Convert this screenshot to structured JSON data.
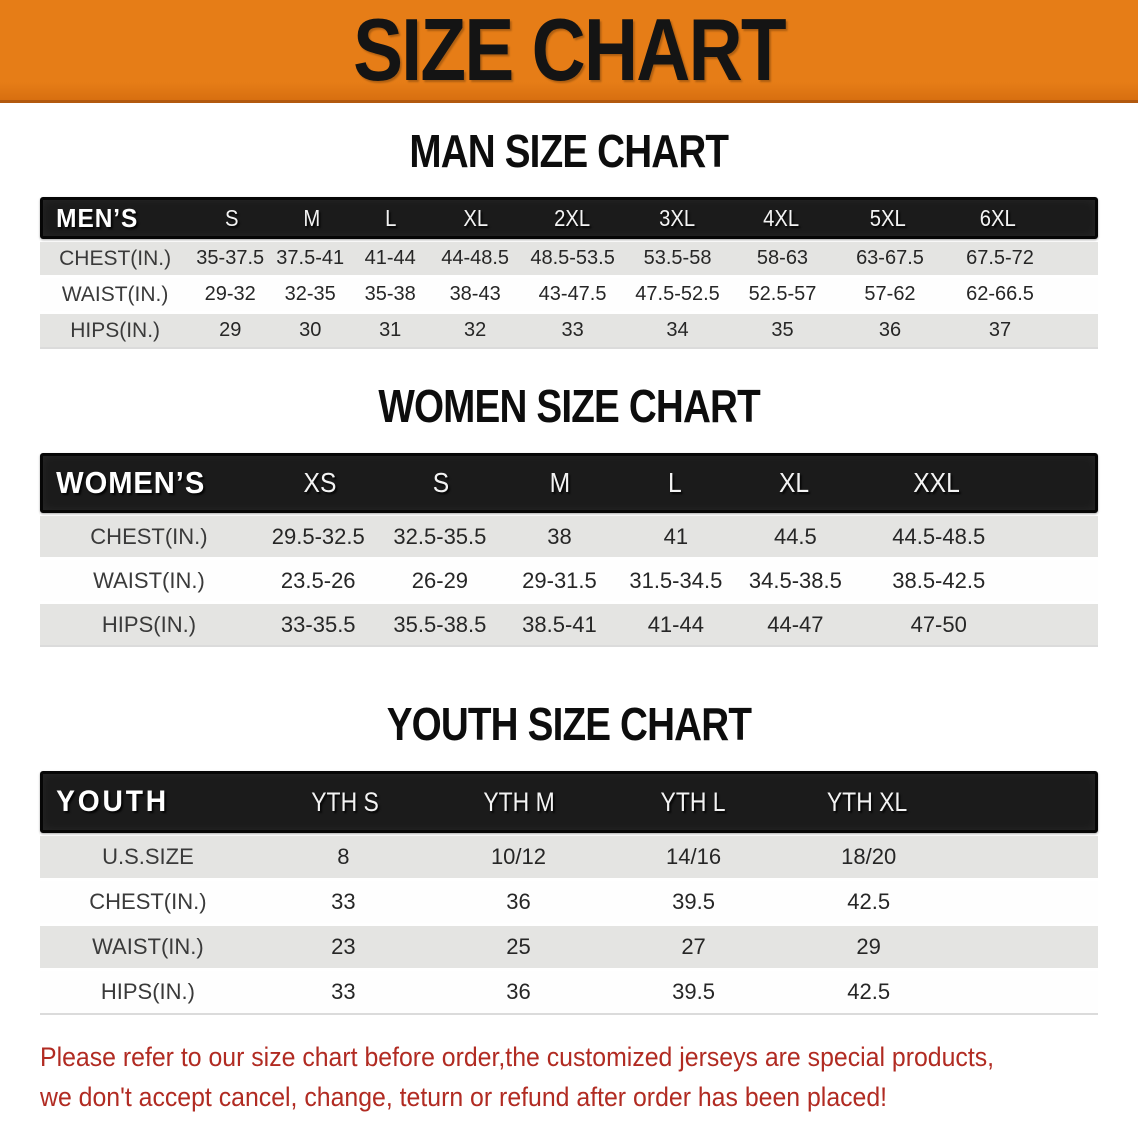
{
  "banner": {
    "title": "SIZE CHART"
  },
  "men": {
    "heading": "MAN SIZE CHART",
    "header": {
      "label": "MEN’S",
      "sizes": [
        "S",
        "M",
        "L",
        "XL",
        "2XL",
        "3XL",
        "4XL",
        "5XL",
        "6XL"
      ]
    },
    "rows": [
      {
        "label": "CHEST(IN.)",
        "cells": [
          "35-37.5",
          "37.5-41",
          "41-44",
          "44-48.5",
          "48.5-53.5",
          "53.5-58",
          "58-63",
          "63-67.5",
          "67.5-72"
        ]
      },
      {
        "label": "WAIST(IN.)",
        "cells": [
          "29-32",
          "32-35",
          "35-38",
          "38-43",
          "43-47.5",
          "47.5-52.5",
          "52.5-57",
          "57-62",
          "62-66.5"
        ]
      },
      {
        "label": "HIPS(IN.)",
        "cells": [
          "29",
          "30",
          "31",
          "32",
          "33",
          "34",
          "35",
          "36",
          "37"
        ]
      }
    ]
  },
  "women": {
    "heading": "WOMEN SIZE CHART",
    "header": {
      "label": "WOMEN’S",
      "sizes": [
        "XS",
        "S",
        "M",
        "L",
        "XL",
        "XXL"
      ]
    },
    "rows": [
      {
        "label": "CHEST(IN.)",
        "cells": [
          "29.5-32.5",
          "32.5-35.5",
          "38",
          "41",
          "44.5",
          "44.5-48.5"
        ]
      },
      {
        "label": "WAIST(IN.)",
        "cells": [
          "23.5-26",
          "26-29",
          "29-31.5",
          "31.5-34.5",
          "34.5-38.5",
          "38.5-42.5"
        ]
      },
      {
        "label": "HIPS(IN.)",
        "cells": [
          "33-35.5",
          "35.5-38.5",
          "38.5-41",
          "41-44",
          "44-47",
          "47-50"
        ]
      }
    ]
  },
  "youth": {
    "heading": "YOUTH SIZE CHART",
    "header": {
      "label": "YOUTH",
      "sizes": [
        "YTH S",
        "YTH M",
        "YTH L",
        "YTH XL"
      ]
    },
    "rows": [
      {
        "label": "U.S.SIZE",
        "cells": [
          "8",
          "10/12",
          "14/16",
          "18/20"
        ]
      },
      {
        "label": "CHEST(IN.)",
        "cells": [
          "33",
          "36",
          "39.5",
          "42.5"
        ]
      },
      {
        "label": "WAIST(IN.)",
        "cells": [
          "23",
          "25",
          "27",
          "29"
        ]
      },
      {
        "label": "HIPS(IN.)",
        "cells": [
          "33",
          "36",
          "39.5",
          "42.5"
        ]
      }
    ]
  },
  "notice": {
    "lines": [
      "Please refer to our size chart before order,the customized jerseys are special products,",
      "we don't accept cancel, change, teturn or refund after order has been placed!"
    ]
  },
  "colors": {
    "orange": "#e67d17",
    "orange-edge": "#b2590f",
    "bar": "#1b1b1b",
    "row-gray": "#e4e4e2",
    "label": "#3a3a3a",
    "value": "#262626",
    "red": "#b12b22",
    "page-bg": "#ffffff"
  }
}
